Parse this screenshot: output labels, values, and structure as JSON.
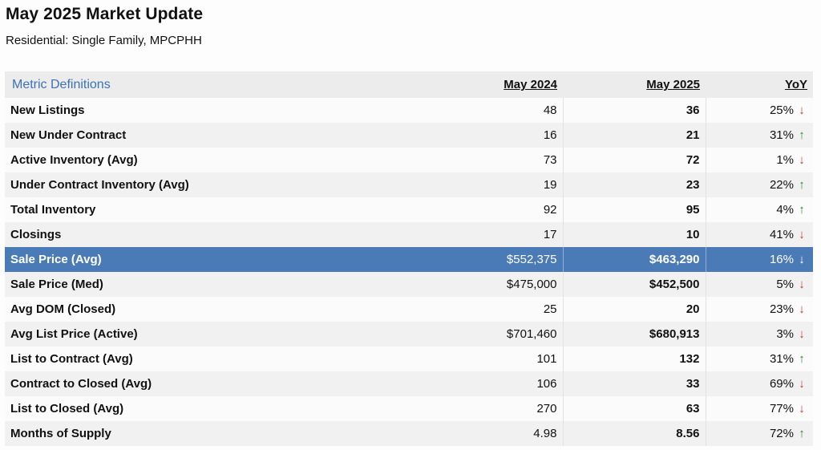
{
  "title": "May 2025 Market Update",
  "subtitle": "Residential: Single Family, MPCPHH",
  "header": {
    "definitions_link": "Metric Definitions",
    "col_2024": "May 2024",
    "col_2025": "May 2025",
    "col_yoy": "YoY"
  },
  "colors": {
    "highlight": "#4a7bb7",
    "down": "#c23a2e",
    "up": "#2f8a3a",
    "link": "#3a72b8"
  },
  "rows": [
    {
      "metric": "New Listings",
      "v2024": "48",
      "v2025": "36",
      "yoy": "25%",
      "dir": "down"
    },
    {
      "metric": "New Under Contract",
      "v2024": "16",
      "v2025": "21",
      "yoy": "31%",
      "dir": "up"
    },
    {
      "metric": "Active Inventory (Avg)",
      "v2024": "73",
      "v2025": "72",
      "yoy": "1%",
      "dir": "down"
    },
    {
      "metric": "Under Contract Inventory (Avg)",
      "v2024": "19",
      "v2025": "23",
      "yoy": "22%",
      "dir": "up"
    },
    {
      "metric": "Total Inventory",
      "v2024": "92",
      "v2025": "95",
      "yoy": "4%",
      "dir": "up"
    },
    {
      "metric": "Closings",
      "v2024": "17",
      "v2025": "10",
      "yoy": "41%",
      "dir": "down"
    },
    {
      "metric": "Sale Price (Avg)",
      "v2024": "$552,375",
      "v2025": "$463,290",
      "yoy": "16%",
      "dir": "down",
      "highlighted": true
    },
    {
      "metric": "Sale Price (Med)",
      "v2024": "$475,000",
      "v2025": "$452,500",
      "yoy": "5%",
      "dir": "down"
    },
    {
      "metric": "Avg DOM (Closed)",
      "v2024": "25",
      "v2025": "20",
      "yoy": "23%",
      "dir": "down"
    },
    {
      "metric": "Avg List Price (Active)",
      "v2024": "$701,460",
      "v2025": "$680,913",
      "yoy": "3%",
      "dir": "down"
    },
    {
      "metric": "List to Contract (Avg)",
      "v2024": "101",
      "v2025": "132",
      "yoy": "31%",
      "dir": "up"
    },
    {
      "metric": "Contract to Closed (Avg)",
      "v2024": "106",
      "v2025": "33",
      "yoy": "69%",
      "dir": "down"
    },
    {
      "metric": "List to Closed (Avg)",
      "v2024": "270",
      "v2025": "63",
      "yoy": "77%",
      "dir": "down"
    },
    {
      "metric": "Months of Supply",
      "v2024": "4.98",
      "v2025": "8.56",
      "yoy": "72%",
      "dir": "up"
    }
  ]
}
